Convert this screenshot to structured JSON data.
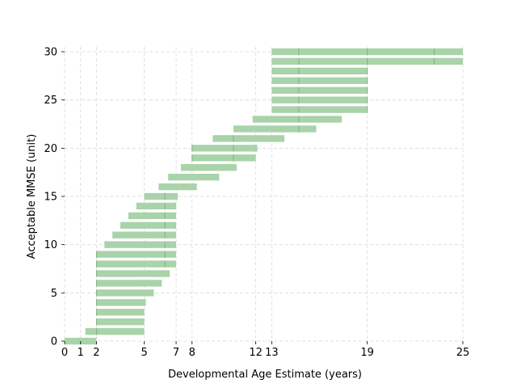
{
  "chart_data": {
    "type": "bar",
    "orientation": "horizontal-range",
    "title": "",
    "xlabel": "Developmental Age Estimate (years)",
    "ylabel": "Acceptable MMSE (unit)",
    "xlim": [
      0,
      25
    ],
    "ylim": [
      0,
      30
    ],
    "xticks": [
      0,
      1,
      2,
      5,
      7,
      8,
      12,
      13,
      19,
      25
    ],
    "yticks": [
      0,
      5,
      10,
      15,
      20,
      25,
      30
    ],
    "grid": true,
    "bar_color": "#a9d3a9",
    "divider_color": "#7fb37f",
    "ranges": [
      {
        "y": 0,
        "start": 0,
        "end": 2,
        "dividers": []
      },
      {
        "y": 1,
        "start": 1.3,
        "end": 5,
        "dividers": [
          2
        ]
      },
      {
        "y": 2,
        "start": 2,
        "end": 5,
        "dividers": [
          2
        ]
      },
      {
        "y": 3,
        "start": 2,
        "end": 5,
        "dividers": [
          2
        ]
      },
      {
        "y": 4,
        "start": 2,
        "end": 5.1,
        "dividers": [
          2
        ]
      },
      {
        "y": 5,
        "start": 2,
        "end": 5.6,
        "dividers": [
          2
        ]
      },
      {
        "y": 6,
        "start": 2,
        "end": 6.1,
        "dividers": [
          2
        ]
      },
      {
        "y": 7,
        "start": 2,
        "end": 6.6,
        "dividers": [
          2
        ]
      },
      {
        "y": 8,
        "start": 2,
        "end": 7,
        "dividers": [
          2,
          6.3
        ]
      },
      {
        "y": 9,
        "start": 2,
        "end": 7,
        "dividers": [
          2,
          6.3
        ]
      },
      {
        "y": 10,
        "start": 2.5,
        "end": 7,
        "dividers": [
          6.3
        ]
      },
      {
        "y": 11,
        "start": 3,
        "end": 7,
        "dividers": [
          6.3
        ]
      },
      {
        "y": 12,
        "start": 3.5,
        "end": 7,
        "dividers": [
          6.3
        ]
      },
      {
        "y": 13,
        "start": 4,
        "end": 7,
        "dividers": [
          6.3
        ]
      },
      {
        "y": 14,
        "start": 4.5,
        "end": 7,
        "dividers": [
          6.3
        ]
      },
      {
        "y": 15,
        "start": 5,
        "end": 7.1,
        "dividers": [
          6.3
        ]
      },
      {
        "y": 16,
        "start": 5.9,
        "end": 8.3,
        "dividers": []
      },
      {
        "y": 17,
        "start": 6.5,
        "end": 9.7,
        "dividers": []
      },
      {
        "y": 18,
        "start": 7.3,
        "end": 10.8,
        "dividers": []
      },
      {
        "y": 19,
        "start": 8,
        "end": 12,
        "dividers": [
          8,
          10.6
        ]
      },
      {
        "y": 20,
        "start": 8,
        "end": 12.1,
        "dividers": [
          8,
          10.6
        ]
      },
      {
        "y": 21,
        "start": 9.3,
        "end": 13.8,
        "dividers": [
          10.6
        ]
      },
      {
        "y": 22,
        "start": 10.6,
        "end": 15.8,
        "dividers": [
          14.7
        ]
      },
      {
        "y": 23,
        "start": 11.8,
        "end": 17.4,
        "dividers": [
          14.7
        ]
      },
      {
        "y": 24,
        "start": 13,
        "end": 19,
        "dividers": [
          14.7,
          19
        ]
      },
      {
        "y": 25,
        "start": 13,
        "end": 19,
        "dividers": [
          14.7,
          19
        ]
      },
      {
        "y": 26,
        "start": 13,
        "end": 19,
        "dividers": [
          14.7,
          19
        ]
      },
      {
        "y": 27,
        "start": 13,
        "end": 19,
        "dividers": [
          14.7,
          19
        ]
      },
      {
        "y": 28,
        "start": 13,
        "end": 19,
        "dividers": [
          14.7,
          19
        ]
      },
      {
        "y": 29,
        "start": 13,
        "end": 25,
        "dividers": [
          14.7,
          19,
          23.2
        ]
      },
      {
        "y": 30,
        "start": 13,
        "end": 25,
        "dividers": [
          14.7,
          19,
          23.2
        ]
      }
    ]
  }
}
